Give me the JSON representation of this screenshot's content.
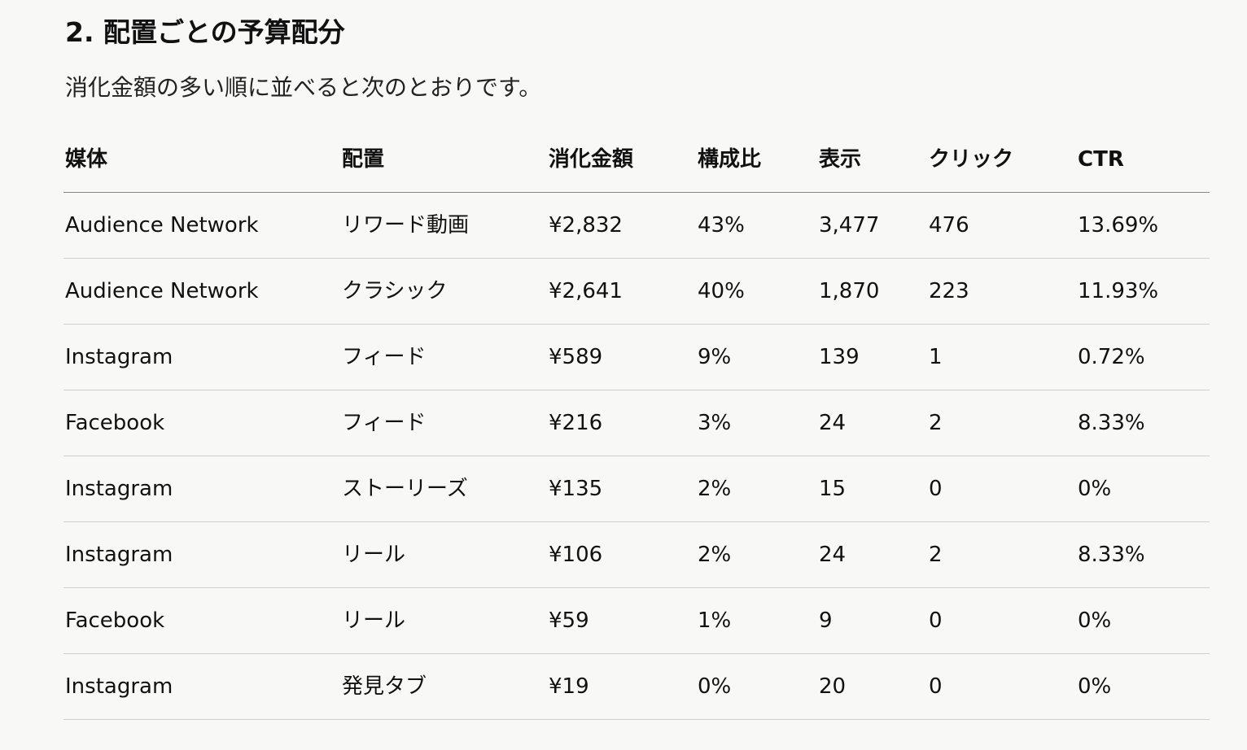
{
  "heading": "2. 配置ごとの予算配分",
  "paragraph": "消化金額の多い順に並べると次のとおりです。",
  "table": {
    "header": [
      "媒体",
      "配置",
      "消化金額",
      "構成比",
      "表示",
      "クリック",
      "CTR"
    ],
    "rows": [
      [
        "Audience Network",
        "リワード動画",
        "¥2,832",
        "43%",
        "3,477",
        "476",
        "13.69%"
      ],
      [
        "Audience Network",
        "クラシック",
        "¥2,641",
        "40%",
        "1,870",
        "223",
        "11.93%"
      ],
      [
        "Instagram",
        "フィード",
        "¥589",
        "9%",
        "139",
        "1",
        "0.72%"
      ],
      [
        "Facebook",
        "フィード",
        "¥216",
        "3%",
        "24",
        "2",
        "8.33%"
      ],
      [
        "Instagram",
        "ストーリーズ",
        "¥135",
        "2%",
        "15",
        "0",
        "0%"
      ],
      [
        "Instagram",
        "リール",
        "¥106",
        "2%",
        "24",
        "2",
        "8.33%"
      ],
      [
        "Facebook",
        "リール",
        "¥59",
        "1%",
        "9",
        "0",
        "0%"
      ],
      [
        "Instagram",
        "発見タブ",
        "¥19",
        "0%",
        "20",
        "0",
        "0%"
      ]
    ]
  }
}
